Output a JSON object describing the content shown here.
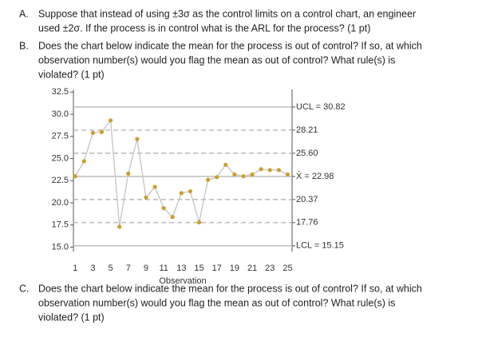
{
  "questions": [
    {
      "label": "A.",
      "lines": [
        "Suppose that instead of using ±3σ as the control limits on a control chart, an engineer",
        "used ±2σ. If the process is in control what is the ARL for the process? (1 pt)"
      ]
    },
    {
      "label": "B.",
      "lines": [
        "Does the chart below indicate the mean for the process is out of control? If so, at which",
        "observation number(s) would you flag the mean as out of control? What rule(s) is",
        "violated? (1 pt)"
      ]
    },
    {
      "label": "C.",
      "lines": [
        "Does the chart below indicate the mean for the process is out of control? If so, at which",
        "observation number(s) would you flag the mean as out of control? What rule(s) is",
        "violated? (1 pt)"
      ]
    }
  ],
  "chart_data": {
    "type": "line",
    "x_label": "Observation",
    "x": [
      1,
      2,
      3,
      4,
      5,
      6,
      7,
      8,
      9,
      10,
      11,
      12,
      13,
      14,
      15,
      16,
      17,
      18,
      19,
      20,
      21,
      22,
      23,
      24,
      25
    ],
    "series": [
      {
        "name": "Observation",
        "color": "#c9a02c",
        "line_color": "#c8c8c8",
        "values": [
          23.0,
          24.7,
          27.9,
          28.0,
          29.3,
          17.3,
          23.3,
          27.2,
          20.6,
          21.8,
          19.4,
          18.4,
          21.1,
          21.3,
          17.8,
          22.6,
          22.9,
          24.3,
          23.2,
          23.0,
          23.2,
          23.8,
          23.7,
          23.7,
          23.2
        ]
      }
    ],
    "xlim": [
      0.8,
      25.5
    ],
    "xticks": [
      1,
      3,
      5,
      7,
      9,
      11,
      13,
      15,
      17,
      19,
      21,
      23,
      25
    ],
    "ylim": [
      14.5,
      32.8
    ],
    "yticks": [
      {
        "value": 15,
        "label": "15.0"
      },
      {
        "value": 17.5,
        "label": "17.5"
      },
      {
        "value": 20,
        "label": "20.0"
      },
      {
        "value": 22.5,
        "label": "22.5"
      },
      {
        "value": 25,
        "label": "25.0"
      },
      {
        "value": 27.5,
        "label": "27.5"
      },
      {
        "value": 30,
        "label": "30.0"
      },
      {
        "value": 32.5,
        "label": "32.5"
      }
    ],
    "control_lines": [
      {
        "value": 30.82,
        "label": "UCL = 30.82",
        "style": "solid"
      },
      {
        "value": 28.21,
        "label": "28.21",
        "style": "dashed"
      },
      {
        "value": 25.6,
        "label": "25.60",
        "style": "dashed"
      },
      {
        "value": 22.98,
        "label": "X̄ = 22.98",
        "style": "solid"
      },
      {
        "value": 20.37,
        "label": "20.37",
        "style": "dashed"
      },
      {
        "value": 17.76,
        "label": "17.76",
        "style": "dashed"
      },
      {
        "value": 15.15,
        "label": "LCL = 15.15",
        "style": "solid"
      }
    ],
    "control_line_color": "#b8b8b8"
  }
}
